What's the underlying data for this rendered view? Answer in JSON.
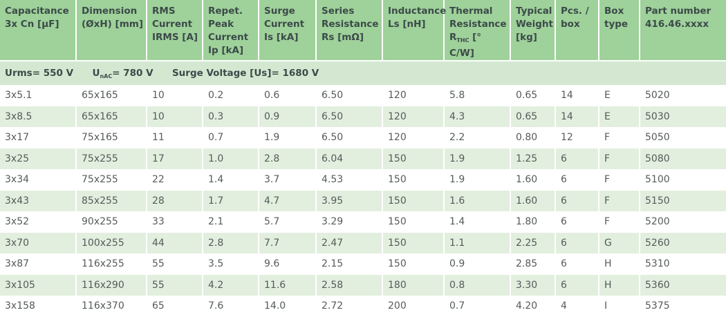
{
  "header": {
    "capacitance": [
      "Capacitance",
      "3x Cn [µF]"
    ],
    "dimension": [
      "Dimension",
      "(ØxH) [mm]"
    ],
    "rms": [
      "RMS",
      "Current",
      "IRMS [A]"
    ],
    "repet": [
      "Repet.",
      "Peak",
      "Current",
      "Ip [kA]"
    ],
    "surge": [
      "Surge",
      "Current",
      "Is [kA]"
    ],
    "series": [
      "Series",
      "Resistance",
      "Rs [mΩ]"
    ],
    "inductance": [
      "Inductance",
      "Ls [nH]"
    ],
    "thermal": {
      "l1": "Thermal",
      "l2": "Resistance",
      "r": "R",
      "sub": "THC",
      "unit": " [°",
      "l4": "C/W]"
    },
    "weight": [
      "Typical",
      "Weight",
      "[kg]"
    ],
    "pcs": [
      "Pcs. /",
      "box"
    ],
    "boxtype": [
      "Box",
      "type"
    ],
    "part": [
      "Part number",
      "416.46.xxxx"
    ]
  },
  "subheader": {
    "urms": "Urms= 550 V",
    "un_prefix": "U",
    "un_sub": "nAC",
    "un_value": "= 780 V",
    "surge": "Surge  Voltage [Us]= 1680 V"
  },
  "rows": [
    [
      "3x5.1",
      "65x165",
      "10",
      "0.2",
      "0.6",
      "6.50",
      "120",
      "5.8",
      "0.65",
      "14",
      "E",
      "5020"
    ],
    [
      "3x8.5",
      "65x165",
      "10",
      "0.3",
      "0.9",
      "6.50",
      "120",
      "4.3",
      "0.65",
      "14",
      "E",
      "5030"
    ],
    [
      "3x17",
      "75x165",
      "11",
      "0.7",
      "1.9",
      "6.50",
      "120",
      "2.2",
      "0.80",
      "12",
      "F",
      "5050"
    ],
    [
      "3x25",
      "75x255",
      "17",
      "1.0",
      "2.8",
      "6.04",
      "150",
      "1.9",
      "1.25",
      "6",
      "F",
      "5080"
    ],
    [
      "3x34",
      "75x255",
      "22",
      "1.4",
      "3.7",
      "4.53",
      "150",
      "1.9",
      "1.60",
      "6",
      "F",
      "5100"
    ],
    [
      "3x43",
      "85x255",
      "28",
      "1.7",
      "4.7",
      "3.95",
      "150",
      "1.6",
      "1.60",
      "6",
      "F",
      "5150"
    ],
    [
      "3x52",
      "90x255",
      "33",
      "2.1",
      "5.7",
      "3.29",
      "150",
      "1.4",
      "1.80",
      "6",
      "F",
      "5200"
    ],
    [
      "3x70",
      "100x255",
      "44",
      "2.8",
      "7.7",
      "2.47",
      "150",
      "1.1",
      "2.25",
      "6",
      "G",
      "5260"
    ],
    [
      "3x87",
      "116x255",
      "55",
      "3.5",
      "9.6",
      "2.15",
      "150",
      "0.9",
      "2.85",
      "6",
      "H",
      "5310"
    ],
    [
      "3x105",
      "116x290",
      "55",
      "4.2",
      "11.6",
      "2.58",
      "180",
      "0.8",
      "3.30",
      "6",
      "H",
      "5360"
    ],
    [
      "3x158",
      "116x370",
      "65",
      "7.6",
      "14.0",
      "2.72",
      "200",
      "0.7",
      "4.20",
      "4",
      "I",
      "5375"
    ]
  ]
}
